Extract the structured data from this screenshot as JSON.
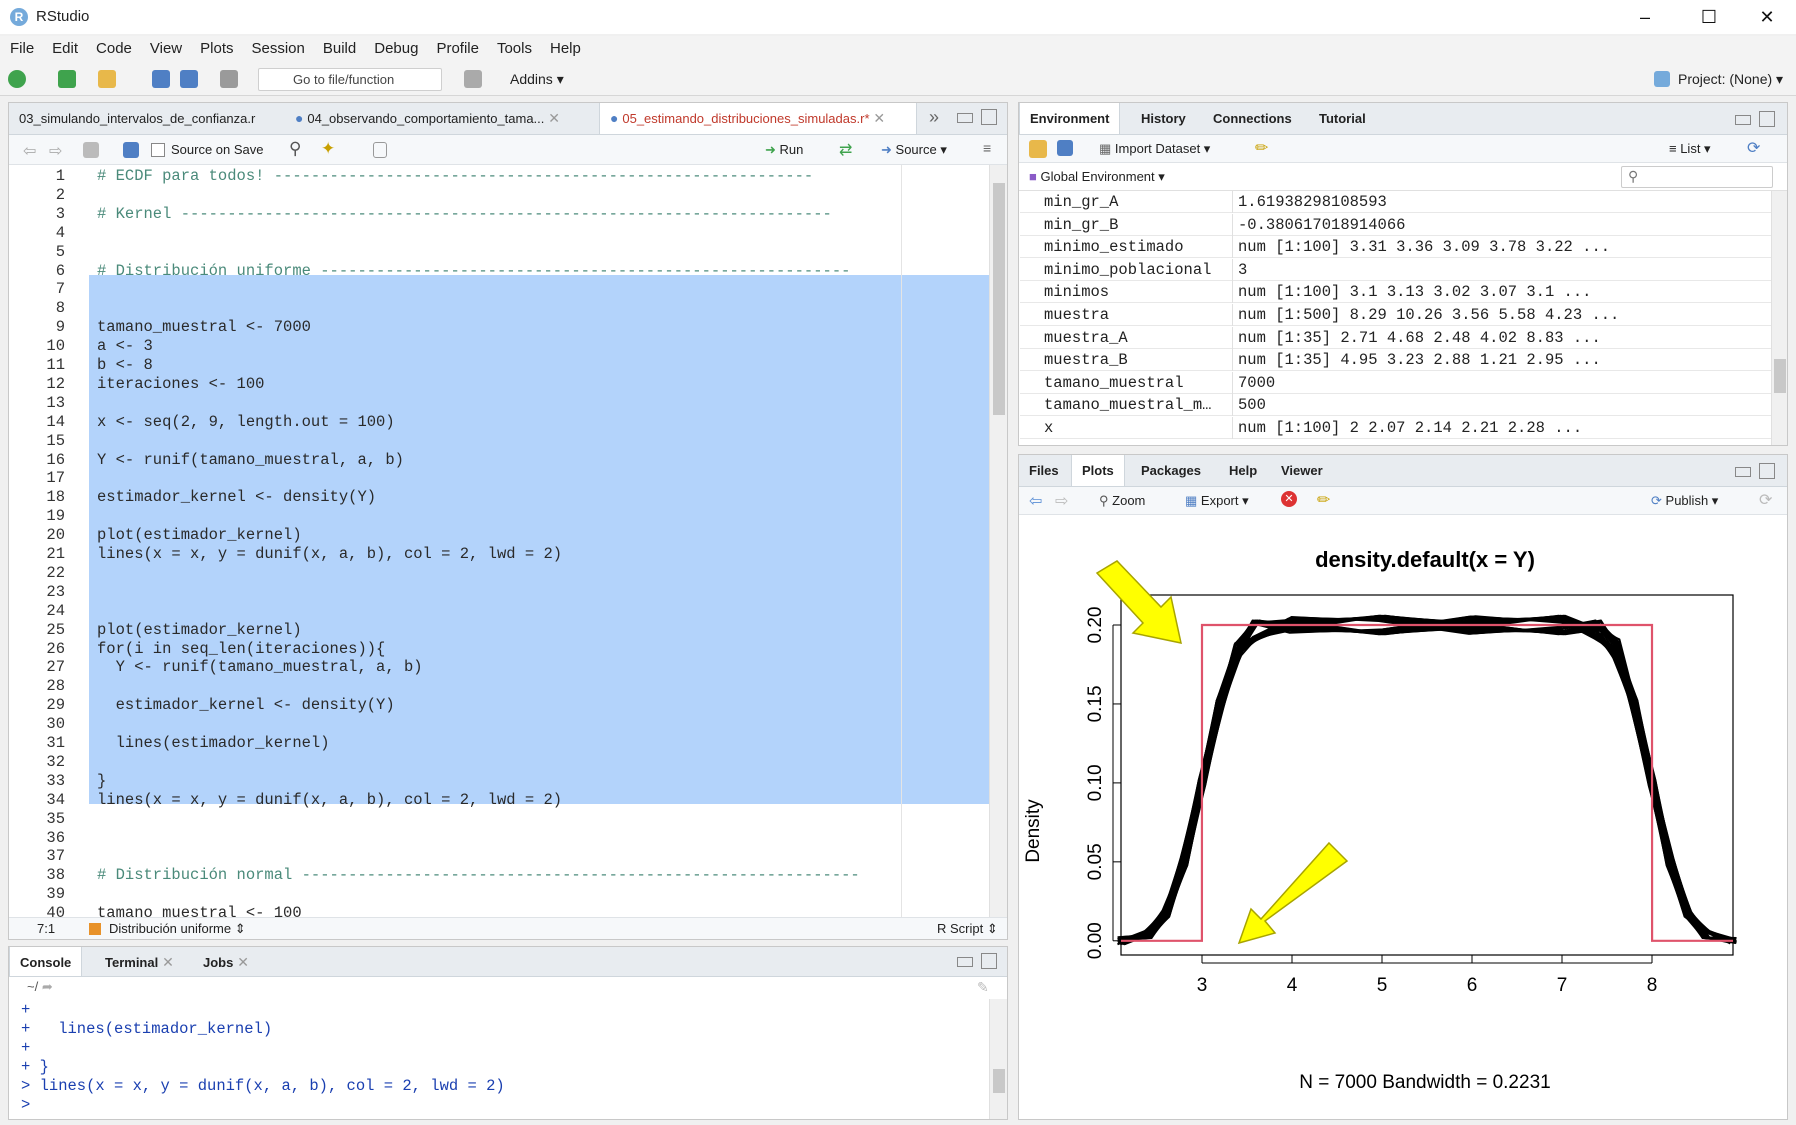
{
  "app": {
    "title": "RStudio",
    "project": "Project: (None)"
  },
  "menu": [
    "File",
    "Edit",
    "Code",
    "View",
    "Plots",
    "Session",
    "Build",
    "Debug",
    "Profile",
    "Tools",
    "Help"
  ],
  "toolbar": {
    "goto_placeholder": "Go to file/function",
    "addins": "Addins"
  },
  "editor": {
    "tabs": [
      "03_simulando_intervalos_de_confianza.r",
      "04_observando_comportamiento_tama...",
      "05_estimando_distribuciones_simuladas.r*"
    ],
    "source_on_save": "Source on Save",
    "run": "Run",
    "source": "Source",
    "lines": [
      {
        "n": "1",
        "t": "# ECDF para todos! ----------------------------------------------------------"
      },
      {
        "n": "2",
        "t": ""
      },
      {
        "n": "3",
        "t": "# Kernel ----------------------------------------------------------------------"
      },
      {
        "n": "4",
        "t": ""
      },
      {
        "n": "5",
        "t": ""
      },
      {
        "n": "6",
        "t": "# Distribución uniforme ---------------------------------------------------------"
      },
      {
        "n": "7",
        "t": ""
      },
      {
        "n": "8",
        "t": ""
      },
      {
        "n": "9",
        "t": "tamano_muestral <- 7000"
      },
      {
        "n": "10",
        "t": "a <- 3"
      },
      {
        "n": "11",
        "t": "b <- 8"
      },
      {
        "n": "12",
        "t": "iteraciones <- 100"
      },
      {
        "n": "13",
        "t": ""
      },
      {
        "n": "14",
        "t": "x <- seq(2, 9, length.out = 100)"
      },
      {
        "n": "15",
        "t": ""
      },
      {
        "n": "16",
        "t": "Y <- runif(tamano_muestral, a, b)"
      },
      {
        "n": "17",
        "t": ""
      },
      {
        "n": "18",
        "t": "estimador_kernel <- density(Y)"
      },
      {
        "n": "19",
        "t": ""
      },
      {
        "n": "20",
        "t": "plot(estimador_kernel)"
      },
      {
        "n": "21",
        "t": "lines(x = x, y = dunif(x, a, b), col = 2, lwd = 2)"
      },
      {
        "n": "22",
        "t": ""
      },
      {
        "n": "23",
        "t": ""
      },
      {
        "n": "24",
        "t": ""
      },
      {
        "n": "25",
        "t": "plot(estimador_kernel)"
      },
      {
        "n": "26",
        "t": "for(i in seq_len(iteraciones)){"
      },
      {
        "n": "27",
        "t": "  Y <- runif(tamano_muestral, a, b)"
      },
      {
        "n": "28",
        "t": ""
      },
      {
        "n": "29",
        "t": "  estimador_kernel <- density(Y)"
      },
      {
        "n": "30",
        "t": ""
      },
      {
        "n": "31",
        "t": "  lines(estimador_kernel)"
      },
      {
        "n": "32",
        "t": ""
      },
      {
        "n": "33",
        "t": "}"
      },
      {
        "n": "34",
        "t": "lines(x = x, y = dunif(x, a, b), col = 2, lwd = 2)"
      },
      {
        "n": "35",
        "t": ""
      },
      {
        "n": "36",
        "t": ""
      },
      {
        "n": "37",
        "t": ""
      },
      {
        "n": "38",
        "t": "# Distribución normal ------------------------------------------------------------"
      },
      {
        "n": "39",
        "t": ""
      },
      {
        "n": "40",
        "t": "tamano_muestral <- 100"
      }
    ],
    "status_pos": "7:1",
    "status_section": "Distribución uniforme",
    "status_type": "R Script"
  },
  "console": {
    "tabs": [
      "Console",
      "Terminal",
      "Jobs"
    ],
    "path": "~/",
    "lines": [
      "+",
      "+   lines(estimador_kernel)",
      "+",
      "+ }",
      "> lines(x = x, y = dunif(x, a, b), col = 2, lwd = 2)",
      "> "
    ]
  },
  "environment": {
    "tabs": [
      "Environment",
      "History",
      "Connections",
      "Tutorial"
    ],
    "import_dataset": "Import Dataset",
    "list_label": "List",
    "global_env": "Global Environment",
    "rows": [
      {
        "name": "min_gr_A",
        "value": "1.61938298108593"
      },
      {
        "name": "min_gr_B",
        "value": "-0.380617018914066"
      },
      {
        "name": "minimo_estimado",
        "value": "num [1:100] 3.31 3.36 3.09 3.78 3.22 ..."
      },
      {
        "name": "minimo_poblacional",
        "value": "3"
      },
      {
        "name": "minimos",
        "value": "num [1:100] 3.1 3.13 3.02 3.07 3.1 ..."
      },
      {
        "name": "muestra",
        "value": "num [1:500] 8.29 10.26 3.56 5.58 4.23 ..."
      },
      {
        "name": "muestra_A",
        "value": "num [1:35] 2.71 4.68 2.48 4.02 8.83 ..."
      },
      {
        "name": "muestra_B",
        "value": "num [1:35] 4.95 3.23 2.88 1.21 2.95 ..."
      },
      {
        "name": "tamano_muestral",
        "value": "7000"
      },
      {
        "name": "tamano_muestral_m…",
        "value": "500"
      },
      {
        "name": "x",
        "value": "num [1:100] 2 2.07 2.14 2.21 2.28 ..."
      }
    ]
  },
  "files": {
    "tabs": [
      "Files",
      "Plots",
      "Packages",
      "Help",
      "Viewer"
    ],
    "zoom": "Zoom",
    "export": "Export",
    "publish": "Publish"
  },
  "chart_data": {
    "type": "line",
    "title": "density.default(x = Y)",
    "xlabel": "N = 7000   Bandwidth = 0.2231",
    "ylabel": "Density",
    "xlim": [
      2.1,
      8.9
    ],
    "ylim": [
      -0.009,
      0.219
    ],
    "x_ticks": [
      "3",
      "4",
      "5",
      "6",
      "7",
      "8"
    ],
    "y_ticks": [
      "0.00",
      "0.05",
      "0.10",
      "0.15",
      "0.20"
    ],
    "series": [
      {
        "color": "#000000",
        "x": [
          2.1,
          2.4,
          2.6,
          2.8,
          3.0,
          3.2,
          3.4,
          3.6,
          4.0,
          5.0,
          6.0,
          7.0,
          7.4,
          7.6,
          7.8,
          8.0,
          8.2,
          8.4,
          8.6,
          8.9
        ],
        "y": [
          0.0,
          0.004,
          0.017,
          0.05,
          0.1,
          0.15,
          0.185,
          0.197,
          0.2,
          0.2,
          0.2,
          0.2,
          0.197,
          0.185,
          0.15,
          0.1,
          0.05,
          0.017,
          0.004,
          0.0
        ]
      },
      {
        "color": "#df536b",
        "x": [
          2.1,
          2.999,
          3.0,
          8.0,
          8.001,
          8.9
        ],
        "y": [
          0,
          0,
          0.2,
          0.2,
          0,
          0
        ]
      }
    ],
    "annotations": [
      "yellow arrow pointing to top-left corner of uniform density",
      "yellow arrow pointing to lower-left base near x=3"
    ]
  }
}
